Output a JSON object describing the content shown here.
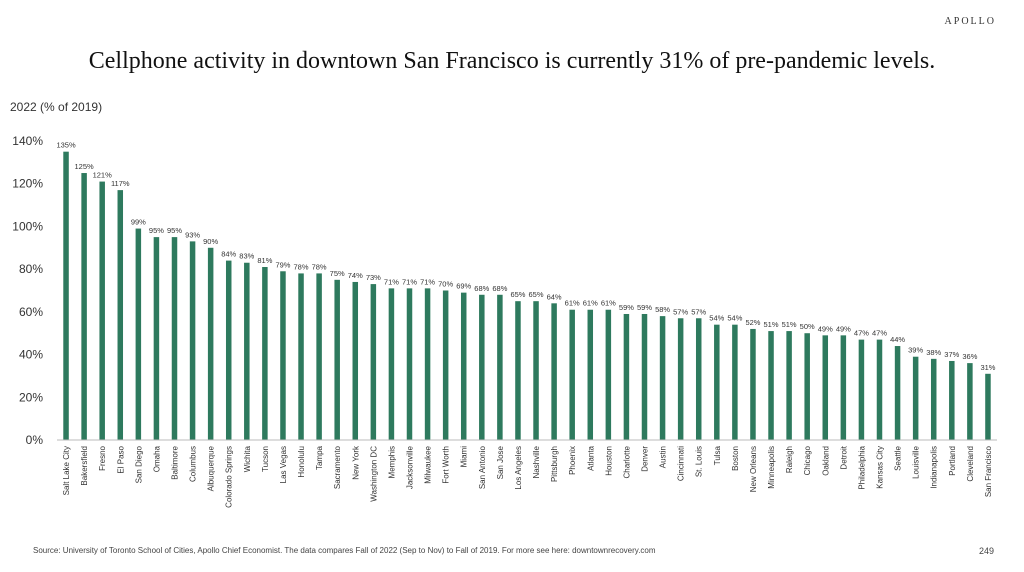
{
  "header": {
    "brand": "APOLLO"
  },
  "chart_data": {
    "type": "bar",
    "title": "Cellphone activity in downtown San Francisco is currently 31% of pre-pandemic levels.",
    "ylabel": "2022 (% of 2019)",
    "ylim": [
      0,
      140
    ],
    "yticks": [
      "0%",
      "20%",
      "40%",
      "60%",
      "80%",
      "100%",
      "120%",
      "140%"
    ],
    "grid": false,
    "bar_color": "#2e7a5e",
    "categories": [
      "Salt Lake City",
      "Bakersfield",
      "Fresno",
      "El Paso",
      "San Diego",
      "Omaha",
      "Baltimore",
      "Columbus",
      "Albuquerque",
      "Colorado Springs",
      "Wichita",
      "Tucson",
      "Las Vegas",
      "Honolulu",
      "Tampa",
      "Sacramento",
      "New York",
      "Washington DC",
      "Memphis",
      "Jacksonville",
      "Milwaukee",
      "Fort Worth",
      "Miami",
      "San Antonio",
      "San Jose",
      "Los Angeles",
      "Nashville",
      "Pittsburgh",
      "Phoenix",
      "Atlanta",
      "Houston",
      "Charlotte",
      "Denver",
      "Austin",
      "Cincinnati",
      "St. Louis",
      "Tulsa",
      "Boston",
      "New Orleans",
      "Minneapolis",
      "Raleigh",
      "Chicago",
      "Oakland",
      "Detroit",
      "Philadelphia",
      "Kansas City",
      "Seattle",
      "Louisville",
      "Indianapolis",
      "Portland",
      "Cleveland",
      "San Francisco"
    ],
    "values": [
      135,
      125,
      121,
      117,
      99,
      95,
      95,
      93,
      90,
      84,
      83,
      81,
      79,
      78,
      78,
      75,
      74,
      73,
      71,
      71,
      71,
      70,
      69,
      68,
      68,
      65,
      65,
      64,
      61,
      61,
      61,
      59,
      59,
      58,
      57,
      57,
      54,
      54,
      52,
      51,
      51,
      50,
      49,
      49,
      47,
      47,
      44,
      39,
      38,
      37,
      36,
      31
    ],
    "data_labels": [
      "135%",
      "125%",
      "121%",
      "117%",
      "99%",
      "95%",
      "95%",
      "93%",
      "90%",
      "84%",
      "83%",
      "81%",
      "79%",
      "78%",
      "78%",
      "75%",
      "74%",
      "73%",
      "71%",
      "71%",
      "71%",
      "70%",
      "69%",
      "68%",
      "68%",
      "65%",
      "65%",
      "64%",
      "61%",
      "61%",
      "61%",
      "59%",
      "59%",
      "58%",
      "57%",
      "57%",
      "54%",
      "54%",
      "52%",
      "51%",
      "51%",
      "50%",
      "49%",
      "49%",
      "47%",
      "47%",
      "44%",
      "39%",
      "38%",
      "37%",
      "36%",
      "31%"
    ]
  },
  "footer": {
    "source": "Source: University of Toronto School of Cities, Apollo Chief Economist. The data compares Fall of 2022 (Sep to Nov) to Fall of 2019. For more see here: downtownrecovery.com",
    "page_number": "249"
  }
}
